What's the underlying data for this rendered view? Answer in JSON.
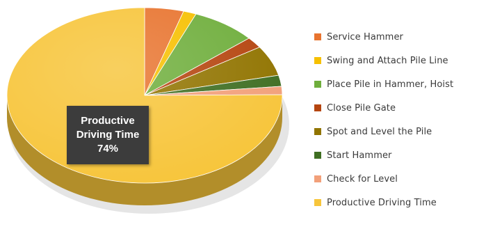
{
  "chart_data": {
    "type": "pie",
    "style": "3d",
    "slices": [
      {
        "label": "Service Hammer",
        "value": 4.5,
        "color": "#e8742f"
      },
      {
        "label": "Swing and Attach Pile Line",
        "value": 1.5,
        "color": "#f6c000"
      },
      {
        "label": "Place Pile in Hammer, Hoist",
        "value": 7.5,
        "color": "#6fae3c"
      },
      {
        "label": "Close Pile Gate",
        "value": 2.0,
        "color": "#b5450f"
      },
      {
        "label": "Spot and Level the Pile",
        "value": 5.5,
        "color": "#917400"
      },
      {
        "label": "Start Hammer",
        "value": 2.0,
        "color": "#3f6e22"
      },
      {
        "label": "Check for Level",
        "value": 1.5,
        "color": "#f2a07a"
      },
      {
        "label": "Productive Driving Time",
        "value": 74,
        "color": "#f7c53b"
      }
    ],
    "legend": "right",
    "annotation": {
      "lines": [
        "Productive",
        "Driving Time",
        "74%"
      ],
      "target": "Productive Driving Time"
    }
  }
}
